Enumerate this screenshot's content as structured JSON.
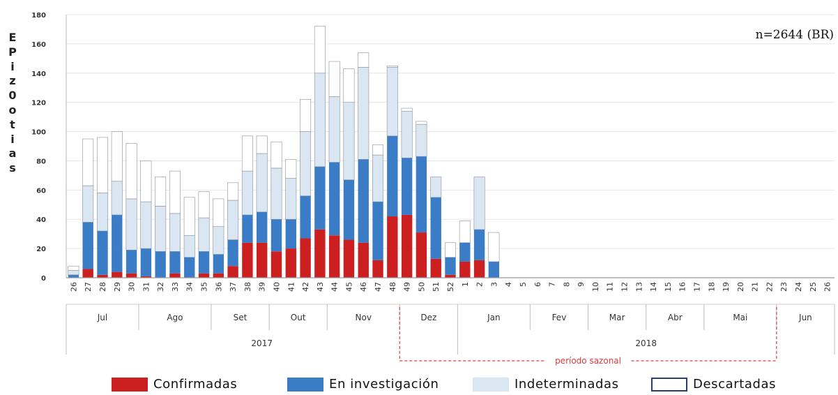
{
  "chart_data": {
    "type": "bar",
    "stacked": true,
    "ylabel": "EPIZOOTIAS",
    "ylabel_letters": [
      "E",
      "P",
      "i",
      "z",
      "0",
      "o",
      "t",
      "i",
      "a",
      "s"
    ],
    "ylim": [
      0,
      180
    ],
    "yticks": [
      "0",
      "20",
      "40",
      "60",
      "80",
      "100",
      "120",
      "140",
      "160",
      "180"
    ],
    "annotation": "n=2644 (BR)",
    "weeks": [
      "26",
      "27",
      "28",
      "29",
      "30",
      "31",
      "32",
      "33",
      "34",
      "35",
      "36",
      "37",
      "38",
      "39",
      "40",
      "41",
      "42",
      "43",
      "44",
      "45",
      "46",
      "47",
      "48",
      "49",
      "50",
      "51",
      "52",
      "1",
      "2",
      "3",
      "4",
      "5",
      "6",
      "7",
      "8",
      "9",
      "10",
      "11",
      "12",
      "13",
      "14",
      "15",
      "16",
      "17",
      "18",
      "19",
      "20",
      "21",
      "22",
      "23",
      "24",
      "25",
      "26"
    ],
    "months": [
      {
        "label": "Jul",
        "start": 0,
        "end": 4
      },
      {
        "label": "Ago",
        "start": 5,
        "end": 9
      },
      {
        "label": "Set",
        "start": 10,
        "end": 13
      },
      {
        "label": "Out",
        "start": 14,
        "end": 17
      },
      {
        "label": "Nov",
        "start": 18,
        "end": 22
      },
      {
        "label": "Dez",
        "start": 23,
        "end": 26
      },
      {
        "label": "Jan",
        "start": 27,
        "end": 31
      },
      {
        "label": "Fev",
        "start": 32,
        "end": 35
      },
      {
        "label": "Mar",
        "start": 36,
        "end": 39
      },
      {
        "label": "Abr",
        "start": 40,
        "end": 43
      },
      {
        "label": "Mai",
        "start": 44,
        "end": 48
      },
      {
        "label": "Jun",
        "start": 49,
        "end": 52
      }
    ],
    "years": [
      {
        "label": "2017",
        "start": 0,
        "end": 26
      },
      {
        "label": "2018",
        "start": 27,
        "end": 52
      }
    ],
    "seasonal_period": {
      "label": "período sazonal",
      "start": 23,
      "end": 48
    },
    "series": [
      {
        "name": "Confirmadas",
        "color": "#cc1f1f",
        "values": [
          0,
          6,
          2,
          4,
          3,
          1,
          0,
          3,
          0,
          3,
          3,
          8,
          24,
          24,
          18,
          20,
          27,
          33,
          29,
          26,
          24,
          12,
          42,
          43,
          31,
          13,
          2,
          11,
          12,
          0,
          0,
          0,
          0,
          0,
          0,
          0,
          0,
          0,
          0,
          0,
          0,
          0,
          0,
          0,
          0,
          0,
          0,
          0,
          0,
          0,
          0,
          0,
          0
        ]
      },
      {
        "name": "En investigación",
        "color": "#3b7cc6",
        "values": [
          2,
          32,
          30,
          39,
          16,
          19,
          18,
          15,
          14,
          15,
          13,
          18,
          19,
          21,
          22,
          20,
          29,
          43,
          50,
          41,
          57,
          40,
          55,
          39,
          52,
          42,
          12,
          13,
          21,
          11,
          0,
          0,
          0,
          0,
          0,
          0,
          0,
          0,
          0,
          0,
          0,
          0,
          0,
          0,
          0,
          0,
          0,
          0,
          0,
          0,
          0,
          0,
          0
        ]
      },
      {
        "name": "Indeterminadas",
        "color": "#dbe6f3",
        "values": [
          3,
          25,
          26,
          23,
          35,
          32,
          31,
          26,
          15,
          23,
          19,
          27,
          30,
          40,
          35,
          28,
          44,
          64,
          45,
          53,
          63,
          32,
          47,
          32,
          22,
          14,
          0,
          0,
          36,
          0,
          0,
          0,
          0,
          0,
          0,
          0,
          0,
          0,
          0,
          0,
          0,
          0,
          0,
          0,
          0,
          0,
          0,
          0,
          0,
          0,
          0,
          0,
          0
        ]
      },
      {
        "name": "Descartadas",
        "color": "#ffffff",
        "values": [
          3,
          32,
          38,
          34,
          38,
          28,
          20,
          29,
          26,
          18,
          19,
          12,
          24,
          12,
          18,
          13,
          22,
          32,
          24,
          23,
          10,
          7,
          1,
          2,
          2,
          0,
          10,
          15,
          0,
          20,
          0,
          0,
          0,
          0,
          0,
          0,
          0,
          0,
          0,
          0,
          0,
          0,
          0,
          0,
          0,
          0,
          0,
          0,
          0,
          0,
          0,
          0,
          0
        ]
      }
    ],
    "legend_position": "bottom",
    "grid": true
  }
}
